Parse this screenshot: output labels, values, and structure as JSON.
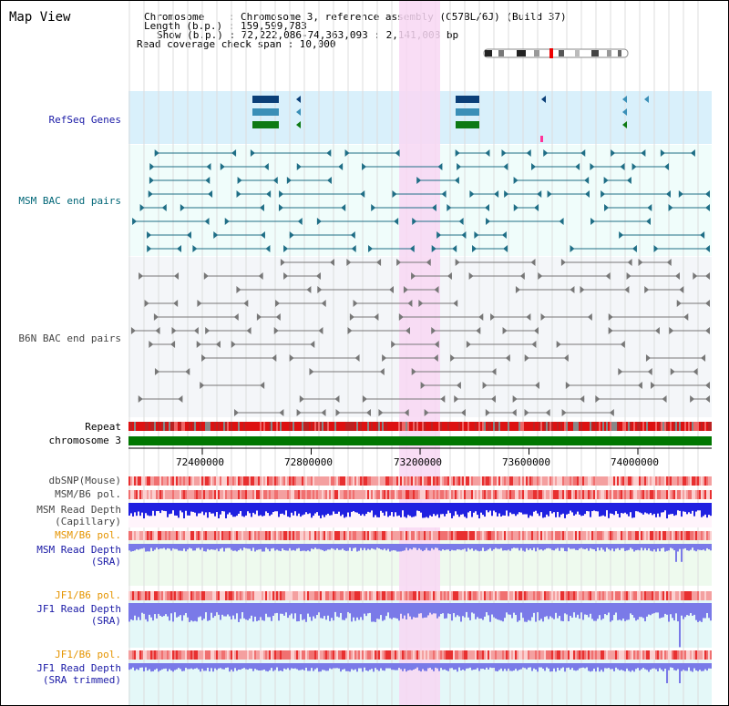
{
  "title": "Map View",
  "header": {
    "line1": "Chromosome    : Chromosome 3, reference assembly (C57BL/6J) (Build 37)",
    "line2": "Length (b.p.) : 159,599,783",
    "line3": "Show (b.p.) : 72,222,086-74,363,093 : 2,141,008 bp",
    "line4": "Read coverage check span : 10,000"
  },
  "tracks": {
    "refseq": "RefSeq Genes",
    "msm_bac": "MSM BAC end pairs",
    "b6n_bac": "B6N BAC end pairs",
    "repeat": "Repeat",
    "chromosome": "chromosome 3",
    "dbsnp": "dbSNP(Mouse)",
    "msm_b6_pol_1": "MSM/B6 pol.",
    "msm_depth_cap_1": "MSM Read Depth",
    "msm_depth_cap_2": "(Capillary)",
    "msm_b6_pol_2": "MSM/B6 pol.",
    "msm_depth_sra_1": "MSM Read Depth",
    "msm_depth_sra_2": "(SRA)",
    "jf1_b6_pol_1": "JF1/B6 pol.",
    "jf1_depth_sra_1": "JF1 Read Depth",
    "jf1_depth_sra_2": "(SRA)",
    "jf1_b6_pol_2": "JF1/B6 pol.",
    "jf1_depth_trim_1": "JF1 Read Depth",
    "jf1_depth_trim_2": "(SRA trimmed)"
  },
  "axis_ticks": [
    "72400000",
    "72800000",
    "73200000",
    "73600000",
    "74000000"
  ],
  "colors": {
    "refseq_bg": "#d9f0fb",
    "bac_bg": "#f0fdfb",
    "b6n_bg": "#f4f6f9",
    "highlight": "#f8d7f3",
    "chromosome": "#007700",
    "repeat": "#dd1111",
    "gene_navy": "#0b3f78",
    "gene_teal": "#3a8fb7",
    "gene_green": "#0e7a14",
    "depth_blue": "#2020e0",
    "depth_sra": "#7a7ae8"
  }
}
